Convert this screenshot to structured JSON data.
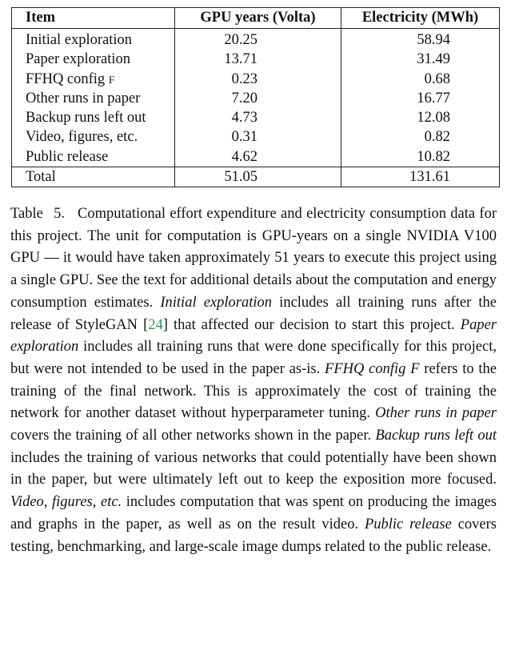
{
  "table": {
    "headers": [
      "Item",
      "GPU years (Volta)",
      "Electricity (MWh)"
    ],
    "rows": [
      {
        "item": "Initial exploration",
        "gpu_years": "20.25",
        "electricity": "58.94"
      },
      {
        "item": "Paper exploration",
        "gpu_years": "13.71",
        "electricity": "31.49"
      },
      {
        "item_main": "FFHQ config ",
        "item_sc": "f",
        "gpu_years": "0.23",
        "electricity": "0.68"
      },
      {
        "item": "Other runs in paper",
        "gpu_years": "7.20",
        "electricity": "16.77"
      },
      {
        "item": "Backup runs left out",
        "gpu_years": "4.73",
        "electricity": "12.08"
      },
      {
        "item": "Video, figures, etc.",
        "gpu_years": "0.31",
        "electricity": "0.82"
      },
      {
        "item": "Public release",
        "gpu_years": "4.62",
        "electricity": "10.82"
      }
    ],
    "total": {
      "item": "Total",
      "gpu_years": "51.05",
      "electricity": "131.61"
    }
  },
  "caption": {
    "label": "Table 5.",
    "s1": "Computational effort expenditure and electricity consumption data for this project. The unit for computation is GPU-years on a single NVIDIA V100 GPU — it would have taken approximately 51 years to execute this project using a single GPU. See the text for additional details about the computation and energy consumption estimates. ",
    "t_initial": "Initial exploration",
    "s2": " includes all training runs after the release of StyleGAN [",
    "ref": "24",
    "s3": "] that affected our decision to start this project. ",
    "t_paper": "Paper exploration",
    "s4": " includes all training runs that were done specifically for this project, but were not intended to be used in the paper as-is. ",
    "t_ffhq": "FFHQ config F",
    "s5": " refers to the training of the final network. This is approximately the cost of training the network for another dataset without hyperparameter tuning. ",
    "t_other": "Other runs in paper",
    "s6": " covers the training of all other networks shown in the paper. ",
    "t_backup": "Backup runs left out",
    "s7": " includes the training of various networks that could potentially have been shown in the paper, but were ultimately left out to keep the exposition more focused. ",
    "t_video": "Video, figures, etc.",
    "s8": " includes computation that was spent on producing the images and graphs in the paper, as well as on the result video. ",
    "t_public": "Public release",
    "s9": " covers testing, benchmarking, and large-scale image dumps related to the public release."
  },
  "colors": {
    "text": "#111111",
    "rule": "#222222",
    "link": "#1aa34a"
  }
}
